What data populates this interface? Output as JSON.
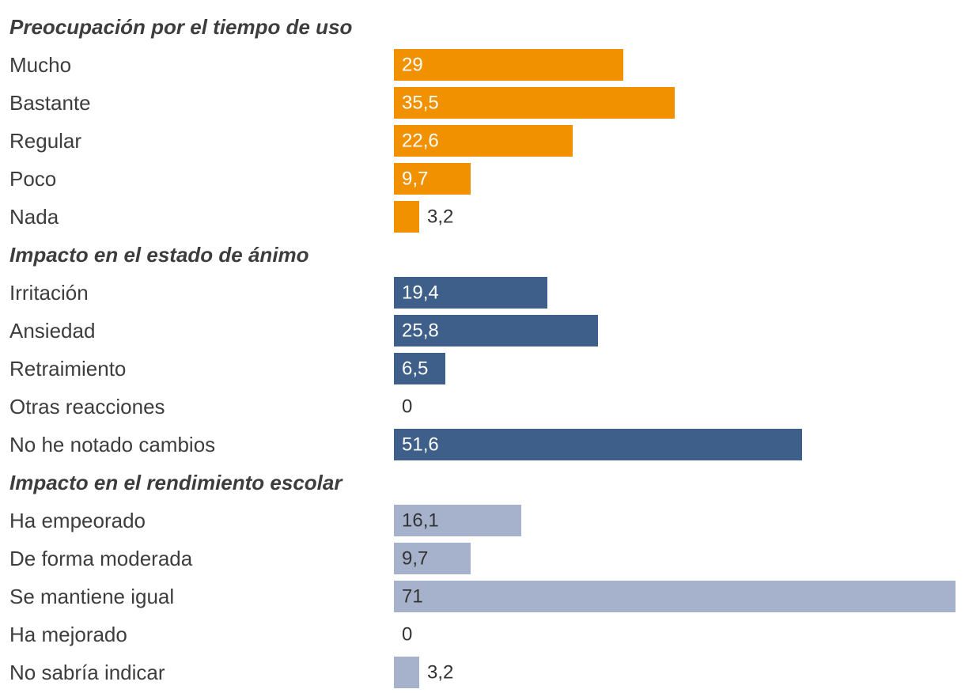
{
  "chart_data": {
    "type": "bar",
    "orientation": "horizontal",
    "xlim": [
      0,
      71
    ],
    "groups": [
      {
        "title": "Preocupación por el tiempo de uso",
        "color": "#f29100",
        "label_color_inside": "#ffffff",
        "categories": [
          "Mucho",
          "Bastante",
          "Regular",
          "Poco",
          "Nada"
        ],
        "values": [
          29,
          35.5,
          22.6,
          9.7,
          3.2
        ],
        "value_labels": [
          "29",
          "35,5",
          "22,6",
          "9,7",
          "3,2"
        ]
      },
      {
        "title": "Impacto en el estado de ánimo",
        "color": "#3d5f8a",
        "label_color_inside": "#ffffff",
        "categories": [
          "Irritación",
          "Ansiedad",
          "Retraimiento",
          "Otras reacciones",
          "No he notado cambios"
        ],
        "values": [
          19.4,
          25.8,
          6.5,
          0,
          51.6
        ],
        "value_labels": [
          "19,4",
          "25,8",
          "6,5",
          "0",
          "51,6"
        ]
      },
      {
        "title": "Impacto en el rendimiento escolar",
        "color": "#a6b2cc",
        "label_color_inside": "#333333",
        "categories": [
          "Ha empeorado",
          "De forma moderada",
          "Se mantiene igual",
          "Ha mejorado",
          "No sabría indicar"
        ],
        "values": [
          16.1,
          9.7,
          71,
          0,
          3.2
        ],
        "value_labels": [
          "16,1",
          "9,7",
          "71",
          "0",
          "3,2"
        ]
      }
    ]
  }
}
